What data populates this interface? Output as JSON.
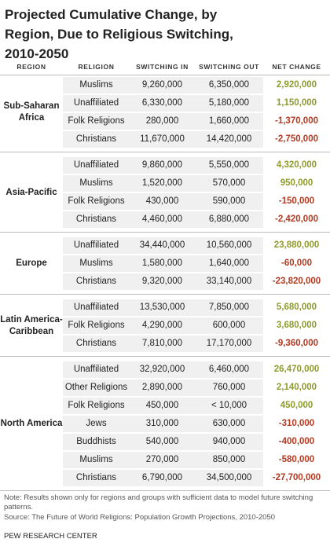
{
  "title": "Projected Cumulative Change, by Region, Due to Religious Switching, 2010-2050",
  "table": {
    "headers": [
      "REGION",
      "RELIGION",
      "SWITCHING IN",
      "SWITCHING OUT",
      "NET CHANGE"
    ],
    "net_colors": {
      "positive": "#8e9b2c",
      "negative": "#b23a22"
    },
    "groups": [
      {
        "region": "Sub-Saharan Africa",
        "rows": [
          [
            "Muslims",
            "9,260,000",
            "6,350,000",
            "2,920,000"
          ],
          [
            "Unaffiliated",
            "6,330,000",
            "5,180,000",
            "1,150,000"
          ],
          [
            "Folk Religions",
            "280,000",
            "1,660,000",
            "-1,370,000"
          ],
          [
            "Christians",
            "11,670,000",
            "14,420,000",
            "-2,750,000"
          ]
        ]
      },
      {
        "region": "Asia-Pacific",
        "rows": [
          [
            "Unaffiliated",
            "9,860,000",
            "5,550,000",
            "4,320,000"
          ],
          [
            "Muslims",
            "1,520,000",
            "570,000",
            "950,000"
          ],
          [
            "Folk Religions",
            "430,000",
            "590,000",
            "-150,000"
          ],
          [
            "Christians",
            "4,460,000",
            "6,880,000",
            "-2,420,000"
          ]
        ]
      },
      {
        "region": "Europe",
        "rows": [
          [
            "Unaffiliated",
            "34,440,000",
            "10,560,000",
            "23,880,000"
          ],
          [
            "Muslims",
            "1,580,000",
            "1,640,000",
            "-60,000"
          ],
          [
            "Christians",
            "9,320,000",
            "33,140,000",
            "-23,820,000"
          ]
        ]
      },
      {
        "region": "Latin America-Caribbean",
        "rows": [
          [
            "Unaffiliated",
            "13,530,000",
            "7,850,000",
            "5,680,000"
          ],
          [
            "Folk Religions",
            "4,290,000",
            "600,000",
            "3,680,000"
          ],
          [
            "Christians",
            "7,810,000",
            "17,170,000",
            "-9,360,000"
          ]
        ]
      },
      {
        "region": "North America",
        "rows": [
          [
            "Unaffiliated",
            "32,920,000",
            "6,460,000",
            "26,470,000"
          ],
          [
            "Other Religions",
            "2,890,000",
            "760,000",
            "2,140,000"
          ],
          [
            "Folk Religions",
            "450,000",
            "< 10,000",
            "450,000"
          ],
          [
            "Jews",
            "310,000",
            "630,000",
            "-310,000"
          ],
          [
            "Buddhists",
            "540,000",
            "940,000",
            "-400,000"
          ],
          [
            "Muslims",
            "270,000",
            "850,000",
            "-580,000"
          ],
          [
            "Christians",
            "6,790,000",
            "34,500,000",
            "-27,700,000"
          ]
        ]
      }
    ]
  },
  "note": "Note: Results shown only for regions and groups with sufficient data to model future switching patterns.",
  "source": "Source: The Future of World Religions: Population Growth Projections, 2010-2050",
  "footer": "PEW RESEARCH CENTER"
}
